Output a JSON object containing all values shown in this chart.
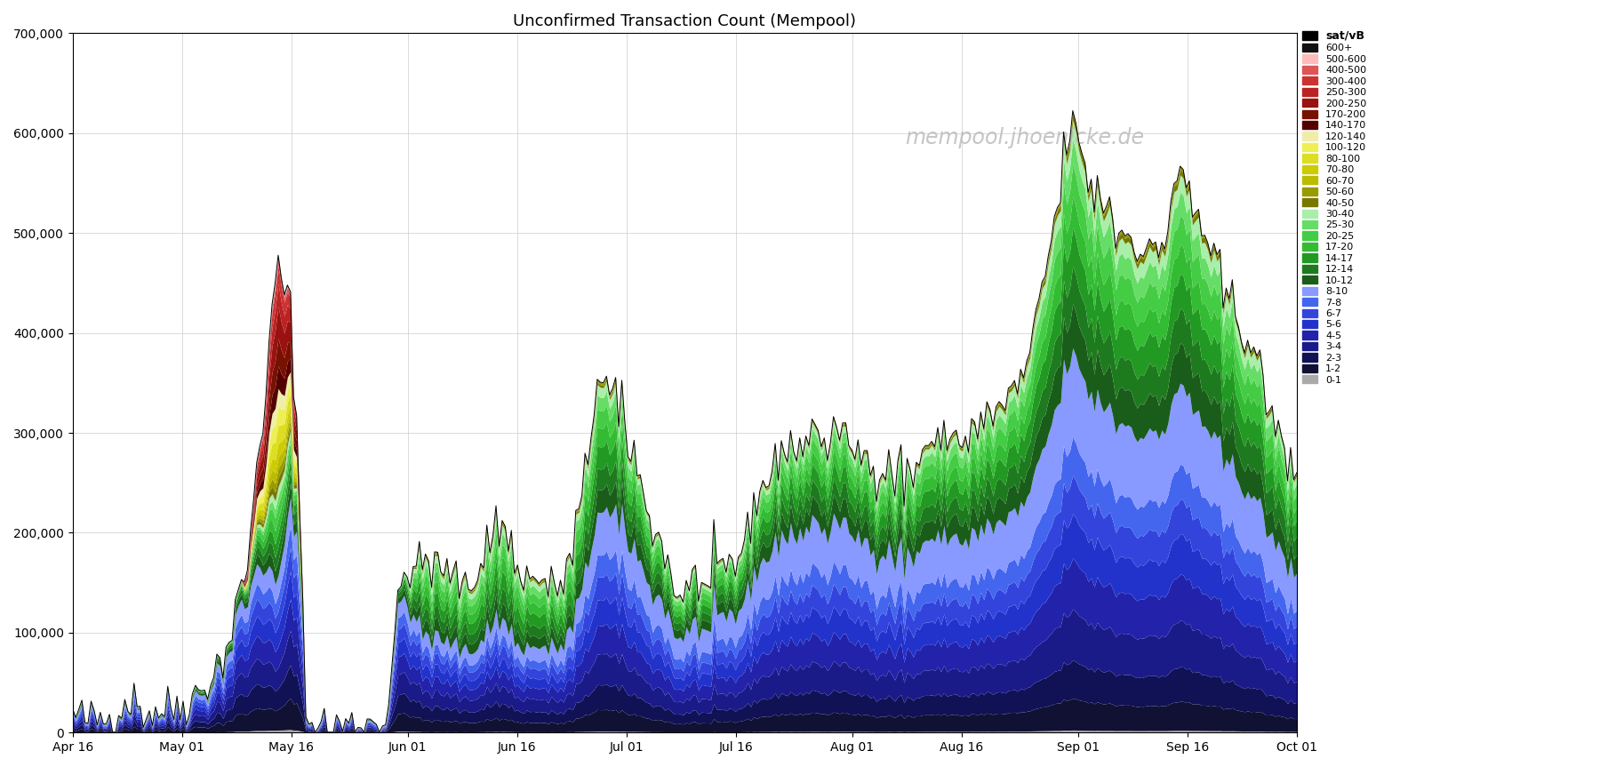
{
  "title": "Unconfirmed Transaction Count (Mempool)",
  "watermark": "mempool.jhoenicke.de",
  "ylim": [
    0,
    700000
  ],
  "yticks": [
    0,
    100000,
    200000,
    300000,
    400000,
    500000,
    600000,
    700000
  ],
  "background_color": "#ffffff",
  "plot_bg_color": "#ffffff",
  "grid_color": "#cccccc",
  "fee_bands": [
    {
      "label": "0-1",
      "color": "#aaaaaa"
    },
    {
      "label": "1-2",
      "color": "#111133"
    },
    {
      "label": "2-3",
      "color": "#111155"
    },
    {
      "label": "3-4",
      "color": "#1a1a88"
    },
    {
      "label": "4-5",
      "color": "#2222aa"
    },
    {
      "label": "5-6",
      "color": "#2233cc"
    },
    {
      "label": "6-7",
      "color": "#3344dd"
    },
    {
      "label": "7-8",
      "color": "#4466ee"
    },
    {
      "label": "8-10",
      "color": "#8899ff"
    },
    {
      "label": "10-12",
      "color": "#1a5c1a"
    },
    {
      "label": "12-14",
      "color": "#1e7a1e"
    },
    {
      "label": "14-17",
      "color": "#229922"
    },
    {
      "label": "17-20",
      "color": "#33bb33"
    },
    {
      "label": "20-25",
      "color": "#44cc44"
    },
    {
      "label": "25-30",
      "color": "#66dd66"
    },
    {
      "label": "30-40",
      "color": "#aaeeaa"
    },
    {
      "label": "40-50",
      "color": "#777700"
    },
    {
      "label": "50-60",
      "color": "#999900"
    },
    {
      "label": "60-70",
      "color": "#bbbb00"
    },
    {
      "label": "70-80",
      "color": "#cccc00"
    },
    {
      "label": "80-100",
      "color": "#dddd22"
    },
    {
      "label": "100-120",
      "color": "#eeee55"
    },
    {
      "label": "120-140",
      "color": "#eeeeaa"
    },
    {
      "label": "140-170",
      "color": "#550000"
    },
    {
      "label": "170-200",
      "color": "#771100"
    },
    {
      "label": "200-250",
      "color": "#991111"
    },
    {
      "label": "250-300",
      "color": "#bb2222"
    },
    {
      "label": "300-400",
      "color": "#cc3333"
    },
    {
      "label": "400-500",
      "color": "#dd5555"
    },
    {
      "label": "500-600",
      "color": "#ffbbbb"
    },
    {
      "label": "600+",
      "color": "#111111"
    }
  ],
  "x_tick_labels": [
    "Apr 16",
    "May 01",
    "May 16",
    "Jun 01",
    "Jun 16",
    "Jul 01",
    "Jul 16",
    "Aug 01",
    "Aug 16",
    "Sep 01",
    "Sep 16",
    "Oct 01"
  ],
  "legend_header": "sat/vB",
  "n_points": 400
}
